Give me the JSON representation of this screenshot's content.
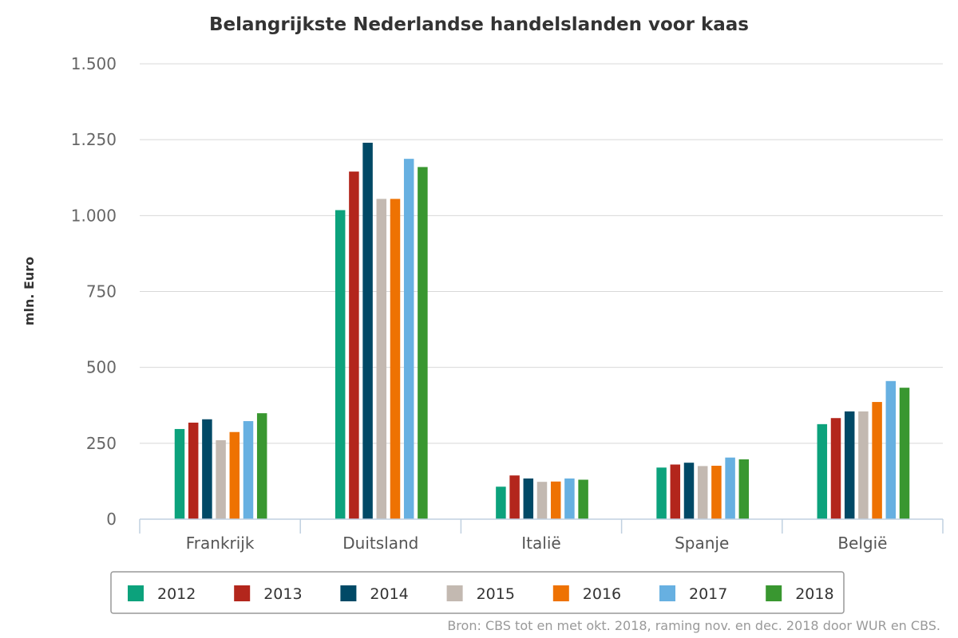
{
  "chart_data": {
    "type": "bar",
    "title": "Belangrijkste Nederlandse handelslanden voor kaas",
    "xlabel": "",
    "ylabel": "mln. Euro",
    "ylim": [
      0,
      1500
    ],
    "yticks": [
      0,
      250,
      500,
      750,
      1000,
      1250,
      1500
    ],
    "ytick_labels": [
      "0",
      "250",
      "500",
      "750",
      "1.000",
      "1.250",
      "1.500"
    ],
    "categories": [
      "Frankrijk",
      "Duitsland",
      "Italië",
      "Spanje",
      "België"
    ],
    "series": [
      {
        "name": "2012",
        "color": "#0ca27c",
        "values": [
          297,
          1018,
          107,
          170,
          313
        ]
      },
      {
        "name": "2013",
        "color": "#b3261c",
        "values": [
          318,
          1145,
          144,
          180,
          333
        ]
      },
      {
        "name": "2014",
        "color": "#004966",
        "values": [
          329,
          1240,
          134,
          186,
          355
        ]
      },
      {
        "name": "2015",
        "color": "#c3b9b1",
        "values": [
          260,
          1055,
          123,
          175,
          355
        ]
      },
      {
        "name": "2016",
        "color": "#ee7202",
        "values": [
          287,
          1055,
          124,
          176,
          386
        ]
      },
      {
        "name": "2017",
        "color": "#67b0e1",
        "values": [
          323,
          1187,
          134,
          203,
          455
        ]
      },
      {
        "name": "2018",
        "color": "#399730",
        "values": [
          349,
          1160,
          130,
          197,
          433
        ]
      }
    ],
    "grid": true,
    "legend_position": "bottom"
  },
  "source": "Bron: CBS tot en met okt. 2018, raming nov. en dec. 2018 door WUR en CBS."
}
